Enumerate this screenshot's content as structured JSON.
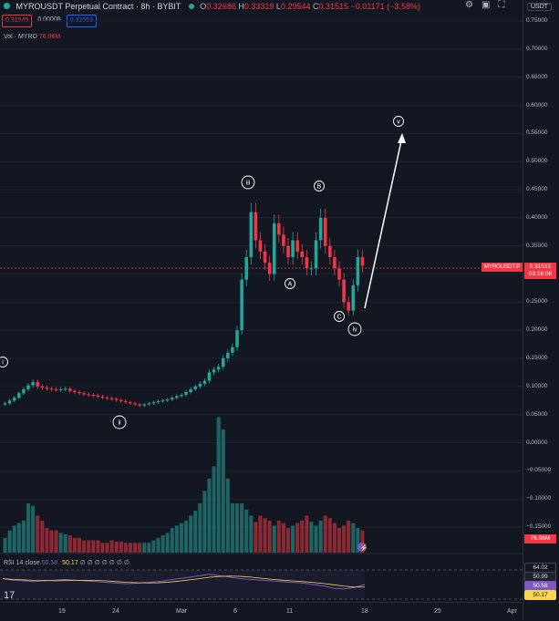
{
  "header": {
    "title": "MYROUSDT Perpetual Contract · 8h · BYBIT",
    "o_label": "O",
    "o": "0.32686",
    "h_label": "H",
    "h": "0.33319",
    "l_label": "L",
    "l": "0.29544",
    "c_label": "C",
    "c": "0.31515",
    "change": "−0.01171 (−3.58%)"
  },
  "price_boxes": [
    "0.31545",
    "0.00008",
    "0.31553"
  ],
  "volume_legend": {
    "label": "Vol · MYRO",
    "value": "76.96M"
  },
  "price_axis": {
    "currency": "USDT",
    "ticks": [
      "0.75000",
      "0.70000",
      "0.65000",
      "0.60000",
      "0.55000",
      "0.50000",
      "0.45000",
      "0.40000",
      "0.35000",
      "0.30000",
      "0.25000",
      "0.20000",
      "0.15000",
      "0.10000",
      "0.05000",
      "0.00000",
      "−0.05000",
      "−0.10000",
      "−0.15000"
    ]
  },
  "last_price_tag": {
    "symbol": "MYROUSDT.P",
    "price": "0.31515",
    "countdown": "03:16:06"
  },
  "volume_tag": "76.96M",
  "waves": [
    "i",
    "ii",
    "iii",
    "iv",
    "v",
    "A",
    "B",
    "C"
  ],
  "rsi": {
    "legend": "RSI 14 close",
    "value_a": "50.58",
    "value_b": "50.17",
    "placeholders": "∅ ∅ ∅ ∅ ∅ ∅ ∅",
    "axis_values": [
      "64.02",
      "50.99",
      "50.58",
      "50.17"
    ]
  },
  "x_axis": [
    "19",
    "24",
    "Mar",
    "6",
    "11",
    "18",
    "25",
    "Apr"
  ],
  "colors": {
    "bull": "#26a69a",
    "bear": "#f23645",
    "bg": "#131722",
    "rsi": "#7e57c2",
    "rsi_ma": "#f7d451"
  },
  "chart_data": {
    "type": "candlestick",
    "title": "MYROUSDT Perpetual Contract · 8h · BYBIT",
    "ylim": [
      -0.15,
      0.75
    ],
    "candles_close": [
      0.07,
      0.075,
      0.08,
      0.088,
      0.095,
      0.102,
      0.108,
      0.1,
      0.098,
      0.096,
      0.095,
      0.094,
      0.095,
      0.096,
      0.092,
      0.09,
      0.088,
      0.086,
      0.085,
      0.084,
      0.082,
      0.08,
      0.079,
      0.078,
      0.076,
      0.074,
      0.072,
      0.07,
      0.068,
      0.066,
      0.068,
      0.07,
      0.072,
      0.074,
      0.075,
      0.077,
      0.08,
      0.083,
      0.085,
      0.09,
      0.095,
      0.1,
      0.105,
      0.11,
      0.125,
      0.13,
      0.135,
      0.15,
      0.16,
      0.17,
      0.2,
      0.29,
      0.33,
      0.41,
      0.36,
      0.34,
      0.32,
      0.3,
      0.39,
      0.37,
      0.35,
      0.33,
      0.36,
      0.34,
      0.33,
      0.31,
      0.31,
      0.36,
      0.4,
      0.35,
      0.33,
      0.31,
      0.29,
      0.25,
      0.235,
      0.28,
      0.33,
      0.315
    ],
    "volume": [
      12,
      18,
      22,
      24,
      26,
      40,
      38,
      30,
      26,
      20,
      18,
      18,
      16,
      15,
      14,
      12,
      12,
      10,
      10,
      10,
      10,
      8,
      8,
      10,
      9,
      9,
      8,
      8,
      8,
      8,
      8,
      8,
      10,
      12,
      14,
      16,
      20,
      22,
      24,
      26,
      30,
      34,
      40,
      50,
      60,
      70,
      110,
      100,
      60,
      40,
      40,
      40,
      35,
      30,
      25,
      30,
      28,
      26,
      22,
      26,
      24,
      20,
      22,
      24,
      26,
      30,
      25,
      22,
      26,
      30,
      28,
      24,
      20,
      22,
      26,
      24,
      20,
      18
    ],
    "rsi": [
      58,
      56,
      55,
      54,
      55,
      56,
      57,
      56,
      55,
      54,
      53,
      52,
      51,
      52,
      53,
      54,
      56,
      58,
      60,
      62,
      64,
      62,
      60,
      58,
      57,
      56,
      55,
      54,
      53,
      52,
      50,
      48,
      45,
      44,
      46,
      50
    ]
  }
}
